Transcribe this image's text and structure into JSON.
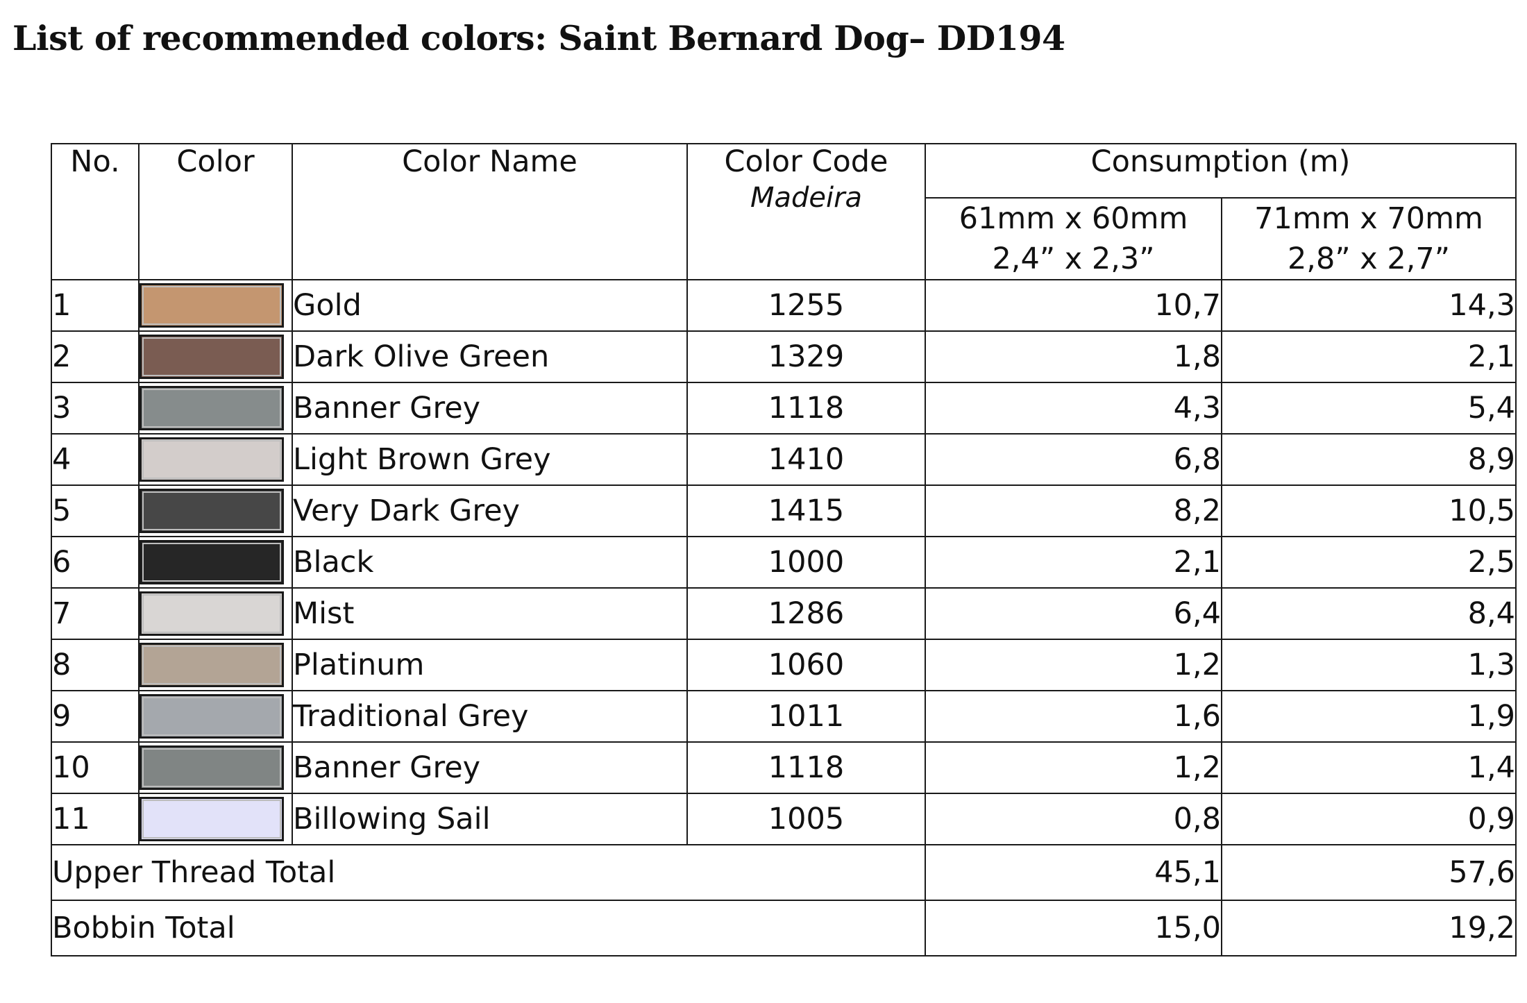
{
  "title": "List of recommended colors: Saint Bernard Dog– DD194",
  "headers": {
    "no": "No.",
    "color": "Color",
    "color_name": "Color Name",
    "color_code": "Color Code",
    "color_code_sub": "Madeira",
    "consumption": "Consumption (m)",
    "size1_mm": "61mm x 60mm",
    "size1_in": "2,4” x 2,3”",
    "size2_mm": "71mm x 70mm",
    "size2_in": "2,8” x 2,7”"
  },
  "rows": [
    {
      "no": "1",
      "swatch": "#c49670",
      "name": "Gold",
      "code": "1255",
      "c1": "10,7",
      "c2": "14,3"
    },
    {
      "no": "2",
      "swatch": "#7a5c52",
      "name": "Dark Olive Green",
      "code": "1329",
      "c1": "1,8",
      "c2": "2,1"
    },
    {
      "no": "3",
      "swatch": "#868c8c",
      "name": "Banner Grey",
      "code": "1118",
      "c1": "4,3",
      "c2": "5,4"
    },
    {
      "no": "4",
      "swatch": "#d3cdcb",
      "name": "Light Brown Grey",
      "code": "1410",
      "c1": "6,8",
      "c2": "8,9"
    },
    {
      "no": "5",
      "swatch": "#474747",
      "name": "Very Dark Grey",
      "code": "1415",
      "c1": "8,2",
      "c2": "10,5"
    },
    {
      "no": "6",
      "swatch": "#262626",
      "name": "Black",
      "code": "1000",
      "c1": "2,1",
      "c2": "2,5"
    },
    {
      "no": "7",
      "swatch": "#d9d6d4",
      "name": "Mist",
      "code": "1286",
      "c1": "6,4",
      "c2": "8,4"
    },
    {
      "no": "8",
      "swatch": "#b3a495",
      "name": "Platinum",
      "code": "1060",
      "c1": "1,2",
      "c2": "1,3"
    },
    {
      "no": "9",
      "swatch": "#a4a8ad",
      "name": "Traditional Grey",
      "code": "1011",
      "c1": "1,6",
      "c2": "1,9"
    },
    {
      "no": "10",
      "swatch": "#808584",
      "name": "Banner Grey",
      "code": "1118",
      "c1": "1,2",
      "c2": "1,4"
    },
    {
      "no": "11",
      "swatch": "#e2e2f9",
      "name": "Billowing Sail",
      "code": "1005",
      "c1": "0,8",
      "c2": "0,9"
    }
  ],
  "totals": [
    {
      "label": "Upper Thread Total",
      "c1": "45,1",
      "c2": "57,6"
    },
    {
      "label": "Bobbin Total",
      "c1": "15,0",
      "c2": "19,2"
    }
  ]
}
